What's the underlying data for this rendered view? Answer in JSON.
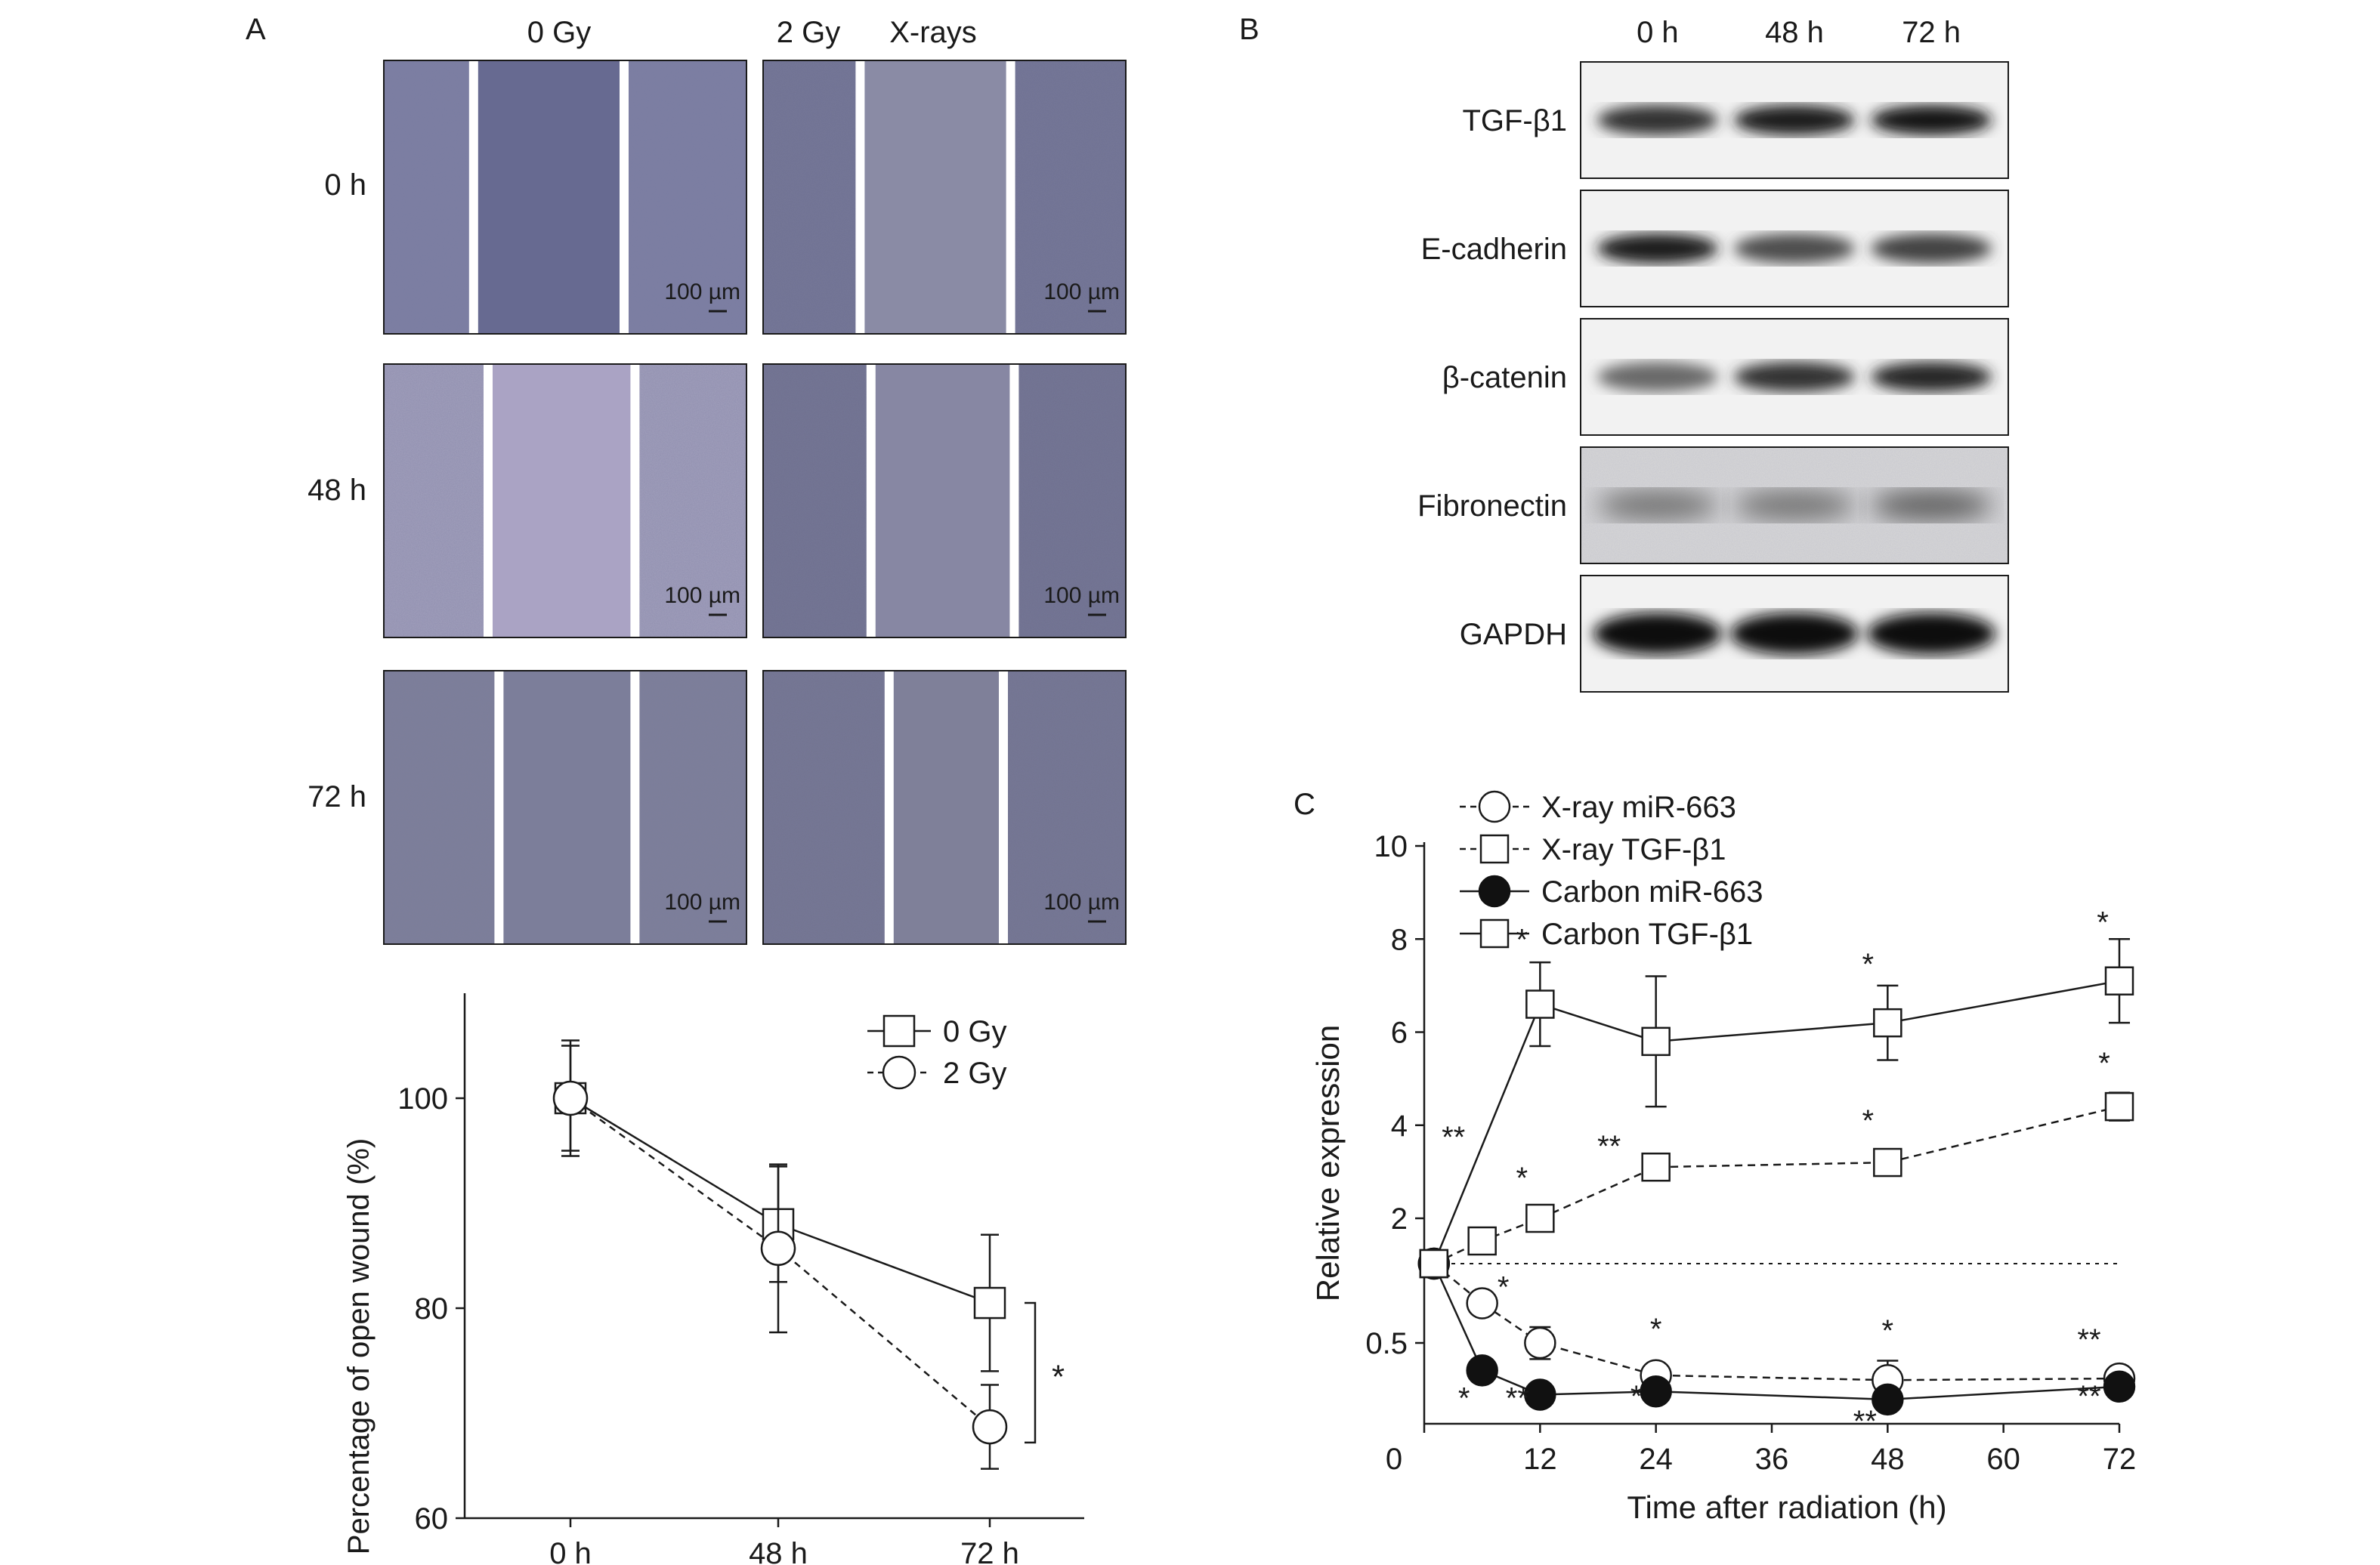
{
  "panel_a": {
    "letter": "A",
    "col_labels": [
      "0 Gy",
      "2 Gy",
      "X-rays"
    ],
    "row_labels": [
      "0 h",
      "48 h",
      "72 h"
    ],
    "scale_label": "100 µm"
  },
  "panel_b": {
    "letter": "B",
    "time_labels": [
      "0 h",
      "48 h",
      "72 h"
    ],
    "proteins": [
      {
        "name": "TGF-β1",
        "intensity": [
          0.8,
          0.9,
          0.95
        ]
      },
      {
        "name": "E-cadherin",
        "intensity": [
          0.9,
          0.65,
          0.7
        ]
      },
      {
        "name": "β-catenin",
        "intensity": [
          0.5,
          0.8,
          0.85
        ]
      },
      {
        "name": "Fibronectin",
        "intensity": [
          0.45,
          0.45,
          0.55
        ]
      },
      {
        "name": "GAPDH",
        "intensity": [
          1.0,
          1.0,
          1.0
        ]
      }
    ]
  },
  "panel_c": {
    "letter": "C"
  },
  "chart_data": [
    {
      "type": "line",
      "panel": "A",
      "ylabel": "Percentage of open wound (%)",
      "xlabel": "",
      "categories": [
        "0 h",
        "48 h",
        "72 h"
      ],
      "ylim": [
        60,
        110
      ],
      "yticks": [
        60,
        80,
        100
      ],
      "legend_position": "top-right",
      "series": [
        {
          "name": "0 Gy",
          "marker": "square",
          "line": "solid",
          "values": [
            100,
            88,
            80.5
          ],
          "err": [
            5,
            5.5,
            6.5
          ]
        },
        {
          "name": "2 Gy",
          "marker": "circle",
          "line": "dashed",
          "values": [
            100,
            85.7,
            68.7
          ],
          "err": [
            5.5,
            8,
            4
          ]
        }
      ],
      "annotations": [
        {
          "text": "*",
          "between": "72 h"
        }
      ]
    },
    {
      "type": "line",
      "panel": "C",
      "xlabel": "Time after radiation (h)",
      "ylabel": "Relative expression",
      "xticks": [
        0,
        12,
        24,
        36,
        48,
        60,
        72
      ],
      "xlim": [
        0,
        72
      ],
      "yticks": [
        "0.5",
        "2",
        "4",
        "6",
        "8",
        "10"
      ],
      "ylim": [
        0,
        10
      ],
      "reference_line": 1,
      "legend_position": "top-left",
      "series": [
        {
          "name": "X-ray miR-663",
          "marker": "circle-open",
          "line": "dashed",
          "x": [
            1,
            6,
            12,
            24,
            48,
            72
          ],
          "y": [
            1,
            0.75,
            0.5,
            0.3,
            0.27,
            0.28
          ],
          "err": [
            0,
            0.07,
            0.1,
            0.06,
            0.12,
            0.05
          ],
          "stars": [
            "",
            "*",
            "",
            "*",
            "*",
            "**"
          ]
        },
        {
          "name": "X-ray TGF-β1",
          "marker": "square-open",
          "line": "dashed",
          "x": [
            1,
            6,
            12,
            24,
            48,
            72
          ],
          "y": [
            1,
            1.5,
            2,
            3.1,
            3.2,
            4.4
          ],
          "err": [
            0,
            0.15,
            0.2,
            0.25,
            0.2,
            0.3
          ],
          "stars": [
            "",
            "",
            "*",
            "**",
            "*",
            "*"
          ]
        },
        {
          "name": "Carbon miR-663",
          "marker": "circle-filled",
          "line": "solid",
          "x": [
            1,
            6,
            12,
            24,
            48,
            72
          ],
          "y": [
            1,
            0.33,
            0.18,
            0.2,
            0.15,
            0.23
          ],
          "err": [
            0,
            0.07,
            0.03,
            0.03,
            0.02,
            0.04
          ],
          "stars": [
            "",
            "*",
            "**",
            "*",
            "**",
            "**"
          ]
        },
        {
          "name": "Carbon TGF-β1",
          "marker": "square-open",
          "line": "solid",
          "x": [
            1,
            12,
            24,
            48,
            72
          ],
          "y": [
            1,
            6.6,
            5.8,
            6.2,
            7.1
          ],
          "err": [
            0,
            0.9,
            1.4,
            0.8,
            0.9
          ],
          "stars": [
            "",
            "*",
            "",
            "*",
            "*"
          ]
        }
      ],
      "extra_stars": [
        {
          "x": 6,
          "y": 3.3,
          "text": "**"
        }
      ]
    }
  ]
}
